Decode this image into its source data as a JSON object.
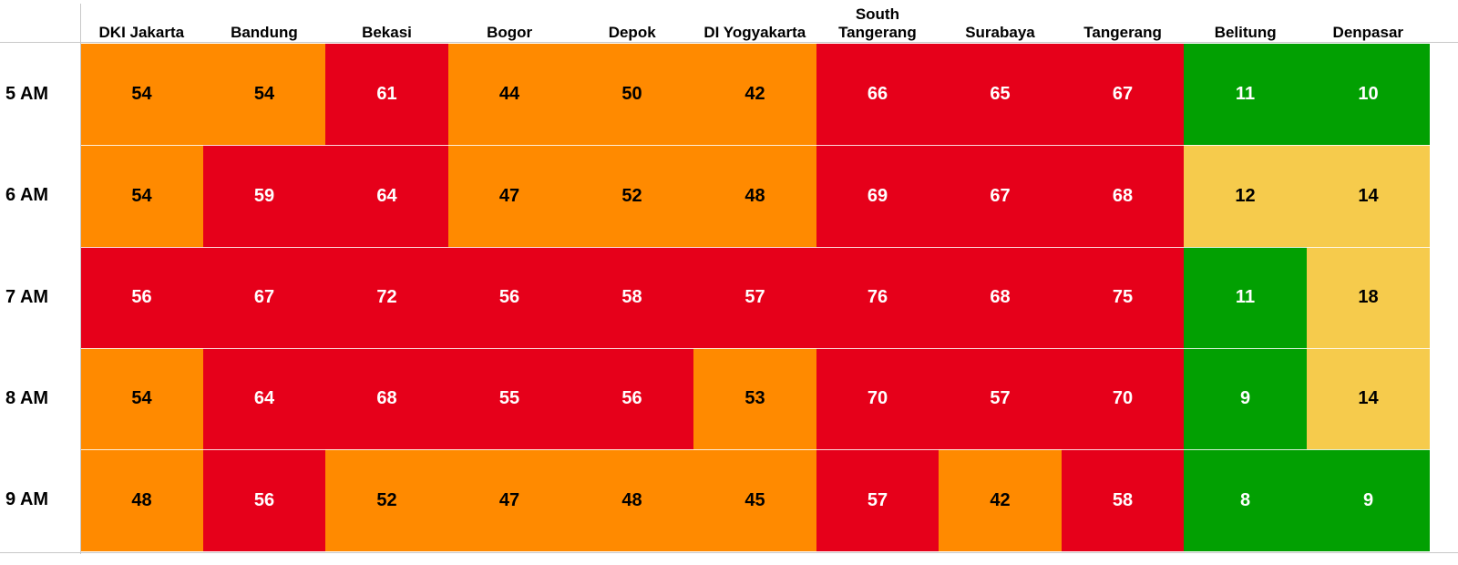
{
  "chart_data": {
    "type": "heatmap",
    "columns": [
      "DKI Jakarta",
      "Bandung",
      "Bekasi",
      "Bogor",
      "Depok",
      "DI Yogyakarta",
      "South Tangerang",
      "Surabaya",
      "Tangerang",
      "Belitung",
      "Denpasar"
    ],
    "rows": [
      "5 AM",
      "6 AM",
      "7 AM",
      "8 AM",
      "9 AM"
    ],
    "values": [
      [
        54,
        54,
        61,
        44,
        50,
        42,
        66,
        65,
        67,
        11,
        10
      ],
      [
        54,
        59,
        64,
        47,
        52,
        48,
        69,
        67,
        68,
        12,
        14
      ],
      [
        56,
        67,
        72,
        56,
        58,
        57,
        76,
        68,
        75,
        11,
        18
      ],
      [
        54,
        64,
        68,
        55,
        56,
        53,
        70,
        57,
        70,
        9,
        14
      ],
      [
        48,
        56,
        52,
        47,
        48,
        45,
        57,
        42,
        58,
        8,
        9
      ]
    ],
    "color_levels": [
      [
        1,
        1,
        2,
        1,
        1,
        1,
        2,
        2,
        2,
        0,
        0
      ],
      [
        1,
        2,
        2,
        1,
        1,
        1,
        2,
        2,
        2,
        3,
        3
      ],
      [
        2,
        2,
        2,
        2,
        2,
        2,
        2,
        2,
        2,
        0,
        3
      ],
      [
        1,
        2,
        2,
        2,
        2,
        1,
        2,
        2,
        2,
        0,
        3
      ],
      [
        1,
        2,
        1,
        1,
        1,
        1,
        2,
        1,
        2,
        0,
        0
      ]
    ],
    "level_colors": [
      "#02a002",
      "#ff8a00",
      "#e6001a",
      "#f6cb4c"
    ],
    "level_text_colors": [
      "#ffffff",
      "#000000",
      "#ffffff",
      "#000000"
    ]
  }
}
